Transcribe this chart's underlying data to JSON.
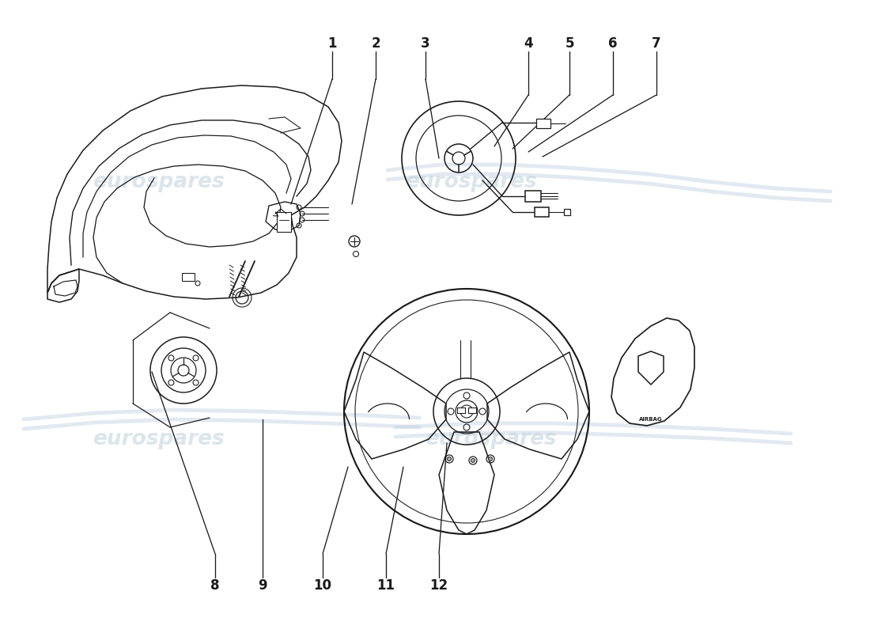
{
  "background_color": "#ffffff",
  "line_color": "#1a1a1a",
  "line_width": 1.1,
  "watermark_text": "eurospares",
  "watermark_color": "#b8ccd8",
  "watermark_alpha": 0.5,
  "label_fontsize": 12,
  "label_fontweight": "bold"
}
